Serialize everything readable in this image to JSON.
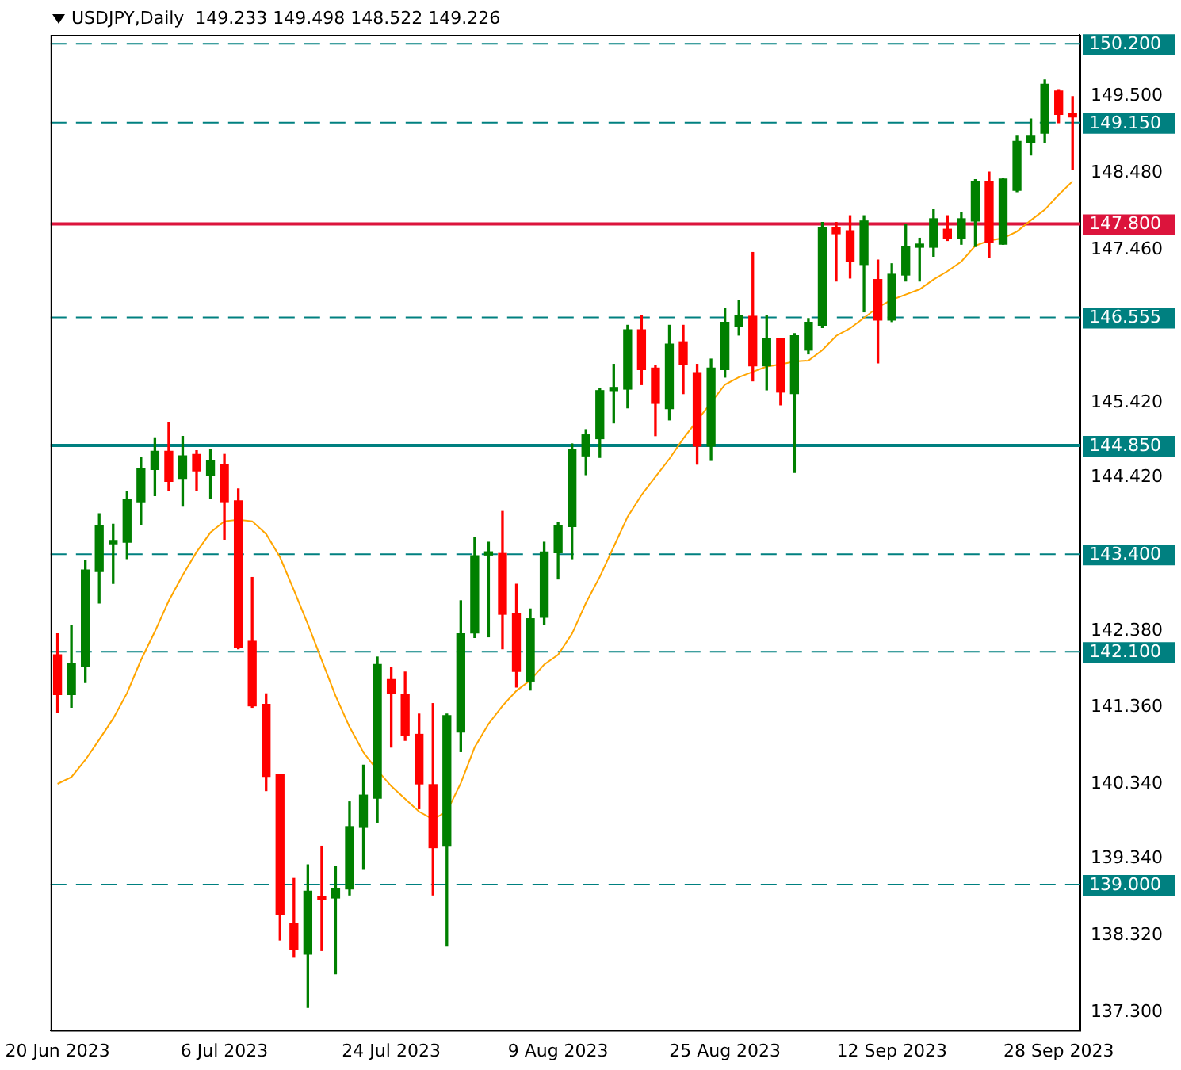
{
  "chart_data": {
    "type": "candlestick",
    "title": "USDJPY,Daily  149.233 149.498 148.522 149.226",
    "categories": [
      "20 Jun 2023",
      null,
      null,
      null,
      null,
      null,
      null,
      null,
      null,
      null,
      null,
      null,
      "6 Jul 2023",
      null,
      null,
      null,
      null,
      null,
      null,
      null,
      null,
      null,
      null,
      null,
      "24 Jul 2023",
      null,
      null,
      null,
      null,
      null,
      null,
      null,
      null,
      null,
      null,
      null,
      "9 Aug 2023",
      null,
      null,
      null,
      null,
      null,
      null,
      null,
      null,
      null,
      null,
      null,
      "25 Aug 2023",
      null,
      null,
      null,
      null,
      null,
      null,
      null,
      null,
      null,
      null,
      null,
      "12 Sep 2023",
      null,
      null,
      null,
      null,
      null,
      null,
      null,
      null,
      null,
      null,
      null,
      "28 Sep 2023",
      null
    ],
    "ohlc": [
      [
        142.06,
        142.34,
        141.29,
        141.53
      ],
      [
        141.53,
        142.45,
        141.36,
        141.95
      ],
      [
        141.9,
        143.31,
        141.69,
        143.19
      ],
      [
        143.17,
        143.94,
        142.75,
        143.78
      ],
      [
        143.54,
        143.8,
        143.01,
        143.57
      ],
      [
        143.56,
        144.23,
        143.34,
        144.13
      ],
      [
        144.1,
        144.69,
        143.79,
        144.54
      ],
      [
        144.53,
        144.95,
        144.18,
        144.77
      ],
      [
        144.77,
        145.15,
        144.25,
        144.37
      ],
      [
        144.41,
        144.97,
        144.04,
        144.71
      ],
      [
        144.73,
        144.78,
        144.25,
        144.51
      ],
      [
        144.45,
        144.79,
        144.14,
        144.65
      ],
      [
        144.6,
        144.73,
        143.6,
        144.1
      ],
      [
        144.11,
        144.27,
        142.14,
        142.16
      ],
      [
        142.24,
        143.09,
        141.36,
        141.38
      ],
      [
        141.4,
        141.54,
        140.25,
        140.44
      ],
      [
        140.47,
        140.47,
        138.26,
        138.6
      ],
      [
        138.48,
        139.08,
        138.03,
        138.14
      ],
      [
        138.07,
        139.26,
        137.36,
        138.91
      ],
      [
        138.83,
        139.51,
        138.12,
        138.8
      ],
      [
        138.82,
        139.24,
        137.81,
        138.95
      ],
      [
        138.94,
        140.1,
        138.86,
        139.77
      ],
      [
        139.76,
        140.59,
        139.2,
        140.19
      ],
      [
        140.15,
        142.03,
        139.83,
        141.93
      ],
      [
        141.73,
        141.89,
        140.83,
        141.55
      ],
      [
        141.53,
        141.83,
        140.92,
        140.99
      ],
      [
        141.0,
        141.27,
        140.01,
        140.34
      ],
      [
        140.33,
        141.41,
        138.86,
        139.49
      ],
      [
        139.51,
        141.27,
        138.18,
        141.25
      ],
      [
        141.03,
        142.78,
        140.77,
        142.34
      ],
      [
        142.35,
        143.62,
        142.29,
        143.38
      ],
      [
        143.39,
        143.56,
        142.3,
        143.41
      ],
      [
        143.41,
        143.97,
        142.14,
        142.6
      ],
      [
        142.61,
        143.0,
        141.63,
        141.84
      ],
      [
        141.71,
        142.67,
        141.59,
        142.54
      ],
      [
        142.56,
        143.56,
        142.47,
        143.43
      ],
      [
        143.42,
        143.82,
        143.07,
        143.78
      ],
      [
        143.77,
        144.87,
        143.34,
        144.79
      ],
      [
        144.71,
        145.06,
        144.46,
        144.99
      ],
      [
        144.94,
        145.61,
        144.69,
        145.58
      ],
      [
        145.58,
        145.93,
        145.15,
        145.61
      ],
      [
        145.6,
        146.45,
        145.35,
        146.39
      ],
      [
        146.39,
        146.58,
        145.66,
        145.86
      ],
      [
        145.88,
        145.92,
        144.98,
        145.41
      ],
      [
        145.34,
        146.45,
        145.19,
        146.2
      ],
      [
        146.23,
        146.45,
        145.54,
        145.93
      ],
      [
        145.82,
        145.93,
        144.6,
        144.84
      ],
      [
        144.84,
        146.0,
        144.65,
        145.88
      ],
      [
        145.86,
        146.68,
        145.76,
        146.49
      ],
      [
        146.44,
        146.78,
        146.32,
        146.58
      ],
      [
        146.57,
        147.42,
        145.71,
        145.91
      ],
      [
        145.91,
        146.58,
        145.59,
        146.27
      ],
      [
        146.27,
        146.27,
        145.39,
        145.56
      ],
      [
        145.54,
        146.34,
        144.49,
        146.31
      ],
      [
        146.12,
        146.54,
        146.07,
        146.49
      ],
      [
        146.45,
        147.82,
        146.42,
        147.75
      ],
      [
        147.75,
        147.82,
        147.04,
        147.67
      ],
      [
        147.71,
        147.91,
        147.08,
        147.3
      ],
      [
        147.26,
        147.91,
        146.63,
        147.84
      ],
      [
        147.06,
        147.32,
        145.95,
        146.52
      ],
      [
        146.52,
        147.27,
        146.5,
        147.13
      ],
      [
        147.12,
        147.79,
        147.04,
        147.5
      ],
      [
        147.49,
        147.61,
        147.04,
        147.52
      ],
      [
        147.49,
        147.99,
        147.37,
        147.87
      ],
      [
        147.73,
        147.91,
        147.58,
        147.61
      ],
      [
        147.61,
        147.95,
        147.53,
        147.87
      ],
      [
        147.84,
        148.39,
        147.5,
        148.37
      ],
      [
        148.37,
        148.49,
        147.35,
        147.55
      ],
      [
        147.53,
        148.41,
        147.53,
        148.4
      ],
      [
        148.25,
        148.98,
        148.23,
        148.9
      ],
      [
        148.89,
        149.2,
        148.72,
        148.98
      ],
      [
        149.01,
        149.72,
        148.89,
        149.66
      ],
      [
        149.57,
        149.59,
        149.15,
        149.26
      ],
      [
        149.233,
        149.498,
        148.522,
        149.226
      ]
    ],
    "colors": [
      "#ff0000",
      "#008000",
      "#008000",
      "#008000",
      "#008000",
      "#008000",
      "#008000",
      "#008000",
      "#ff0000",
      "#008000",
      "#ff0000",
      "#008000",
      "#ff0000",
      "#ff0000",
      "#ff0000",
      "#ff0000",
      "#ff0000",
      "#ff0000",
      "#008000",
      "#ff0000",
      "#008000",
      "#008000",
      "#008000",
      "#008000",
      "#ff0000",
      "#ff0000",
      "#ff0000",
      "#ff0000",
      "#008000",
      "#008000",
      "#008000",
      "#008000",
      "#ff0000",
      "#ff0000",
      "#008000",
      "#008000",
      "#008000",
      "#008000",
      "#008000",
      "#008000",
      "#008000",
      "#008000",
      "#ff0000",
      "#ff0000",
      "#008000",
      "#ff0000",
      "#ff0000",
      "#008000",
      "#008000",
      "#008000",
      "#ff0000",
      "#008000",
      "#ff0000",
      "#008000",
      "#008000",
      "#008000",
      "#ff0000",
      "#ff0000",
      "#008000",
      "#ff0000",
      "#008000",
      "#008000",
      "#008000",
      "#008000",
      "#ff0000",
      "#008000",
      "#008000",
      "#ff0000",
      "#008000",
      "#008000",
      "#008000",
      "#008000",
      "#ff0000",
      "#ff0000"
    ],
    "series": [
      {
        "type": "line",
        "color": "#ffa500",
        "values": [
          140.34,
          140.43,
          140.66,
          140.93,
          141.21,
          141.55,
          141.99,
          142.37,
          142.78,
          143.12,
          143.43,
          143.69,
          143.84,
          143.86,
          143.84,
          143.67,
          143.36,
          142.92,
          142.47,
          141.99,
          141.51,
          141.1,
          140.76,
          140.52,
          140.31,
          140.14,
          139.97,
          139.87,
          139.97,
          140.35,
          140.83,
          141.14,
          141.38,
          141.58,
          141.72,
          141.93,
          142.06,
          142.34,
          142.75,
          143.1,
          143.5,
          143.9,
          144.19,
          144.43,
          144.67,
          144.94,
          145.18,
          145.42,
          145.66,
          145.76,
          145.83,
          145.9,
          145.93,
          145.97,
          145.98,
          146.12,
          146.31,
          146.41,
          146.55,
          146.69,
          146.79,
          146.86,
          146.93,
          147.06,
          147.17,
          147.3,
          147.51,
          147.58,
          147.61,
          147.7,
          147.85,
          147.99,
          148.19,
          148.37
        ]
      }
    ],
    "ylim": [
      137.06,
      150.32
    ],
    "yticks": [
      {
        "value": 149.5,
        "label": "149.500"
      },
      {
        "value": 148.48,
        "label": "148.480"
      },
      {
        "value": 147.46,
        "label": "147.460"
      },
      {
        "value": 145.42,
        "label": "145.420"
      },
      {
        "value": 144.42,
        "label": "144.420"
      },
      {
        "value": 142.38,
        "label": "142.380"
      },
      {
        "value": 141.36,
        "label": "141.360"
      },
      {
        "value": 140.34,
        "label": "140.340"
      },
      {
        "value": 139.34,
        "label": "139.340"
      },
      {
        "value": 138.32,
        "label": "138.320"
      },
      {
        "value": 137.3,
        "label": "137.300"
      }
    ],
    "ref_lines": [
      {
        "axis": "y",
        "value": 150.2,
        "label": "150.200",
        "color": "#008080",
        "line_style": "dashed"
      },
      {
        "axis": "y",
        "value": 149.15,
        "label": "149.150",
        "color": "#008080",
        "line_style": "dashed"
      },
      {
        "axis": "y",
        "value": 147.8,
        "label": "147.800",
        "color": "#dc143c",
        "line_style": "solid"
      },
      {
        "axis": "y",
        "value": 146.555,
        "label": "146.555",
        "color": "#008080",
        "line_style": "dashed"
      },
      {
        "axis": "y",
        "value": 144.85,
        "label": "144.850",
        "color": "#008080",
        "line_style": "solid"
      },
      {
        "axis": "y",
        "value": 143.4,
        "label": "143.400",
        "color": "#008080",
        "line_style": "dashed"
      },
      {
        "axis": "y",
        "value": 142.1,
        "label": "142.100",
        "color": "#008080",
        "line_style": "dashed"
      },
      {
        "axis": "y",
        "value": 139.0,
        "label": "139.000",
        "color": "#008080",
        "line_style": "dashed"
      }
    ],
    "grid": false,
    "legend": false
  }
}
